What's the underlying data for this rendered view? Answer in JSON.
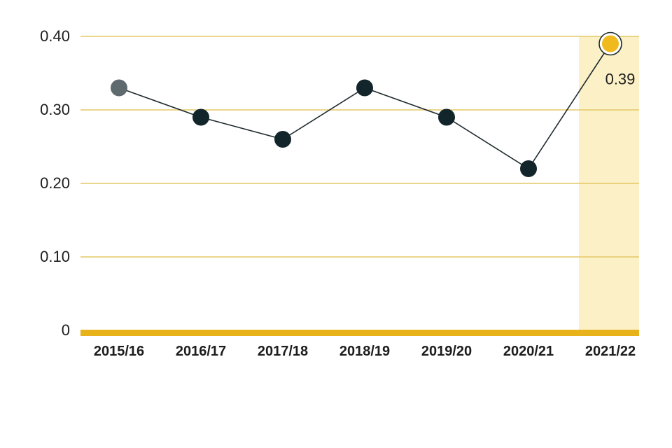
{
  "chart_data": {
    "type": "line",
    "title": "",
    "xlabel": "",
    "ylabel": "",
    "categories": [
      "2015/16",
      "2016/17",
      "2017/18",
      "2018/19",
      "2019/20",
      "2020/21",
      "2021/22"
    ],
    "series": [
      {
        "values": [
          0.33,
          0.29,
          0.26,
          0.33,
          0.29,
          0.22,
          0.39
        ]
      }
    ],
    "ylim": [
      0,
      0.4
    ],
    "y_ticks": [
      0,
      0.1,
      0.2,
      0.3,
      0.4
    ],
    "y_tick_labels": [
      "0",
      "0.10",
      "0.20",
      "0.30",
      "0.40"
    ],
    "highlight_index": 6,
    "highlight_label": "0.39",
    "grid": true,
    "legend": "none",
    "colors": {
      "line": "#1f2a2e",
      "point": "#12252b",
      "first_point": "#5f6a6f",
      "highlight_point": "#f0b91e",
      "gridline": "#e4c866",
      "baseline": "#e8b21b",
      "highlight_band": "#fbf0c6"
    }
  }
}
